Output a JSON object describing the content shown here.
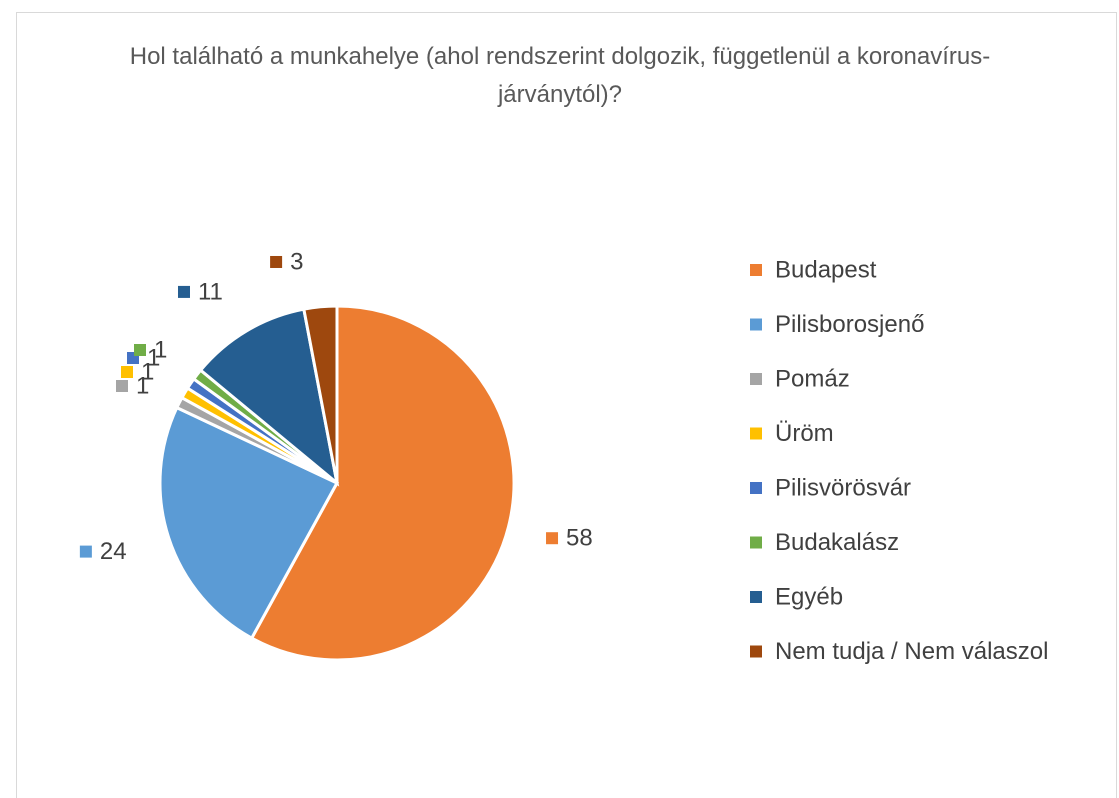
{
  "chart_data": {
    "type": "pie",
    "title": "Hol található a munkahelye (ahol rendszerint dolgozik, függetlenül a koronavírus-járványtól)?",
    "categories": [
      "Budapest",
      "Pilisborosjenő",
      "Pomáz",
      "Üröm",
      "Pilisvörösvár",
      "Budakalász",
      "Egyéb",
      "Nem tudja / Nem válaszol"
    ],
    "values": [
      58,
      24,
      1,
      1,
      1,
      1,
      11,
      3
    ],
    "colors": [
      "#ED7D31",
      "#5B9BD5",
      "#A5A5A5",
      "#FFC000",
      "#4472C4",
      "#70AD47",
      "#255E91",
      "#9E480E"
    ],
    "legend": "right"
  }
}
